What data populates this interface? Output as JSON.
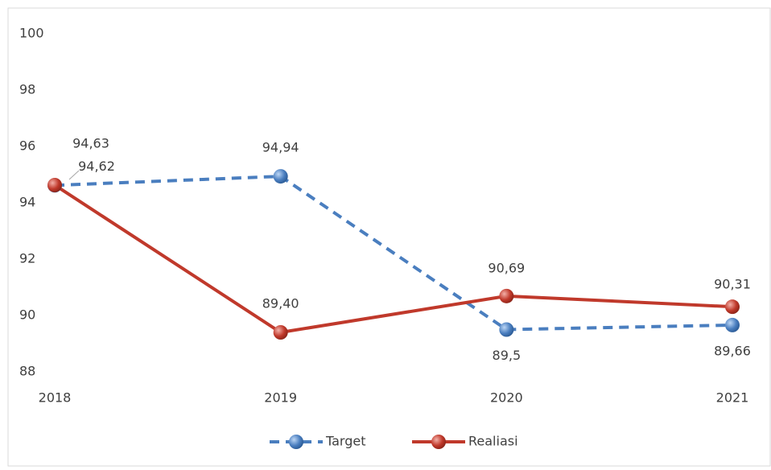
{
  "chart_data": {
    "type": "line",
    "categories": [
      "2018",
      "2019",
      "2020",
      "2021"
    ],
    "series": [
      {
        "name": "Target",
        "color": "#4a7ebf",
        "dashed": true,
        "values": [
          94.62,
          94.94,
          89.5,
          89.66
        ],
        "value_labels": [
          "94,62",
          "94,94",
          "89,5",
          "89,66"
        ]
      },
      {
        "name": "Realiasi",
        "color": "#c0392b",
        "dashed": false,
        "values": [
          94.63,
          89.4,
          90.69,
          90.31
        ],
        "value_labels": [
          "94,63",
          "89,40",
          "90,69",
          "90,31"
        ]
      }
    ],
    "ylim": [
      88,
      100
    ],
    "yticks": [
      88,
      90,
      92,
      94,
      96,
      98,
      100
    ],
    "grid": false,
    "legend": "bottom"
  }
}
